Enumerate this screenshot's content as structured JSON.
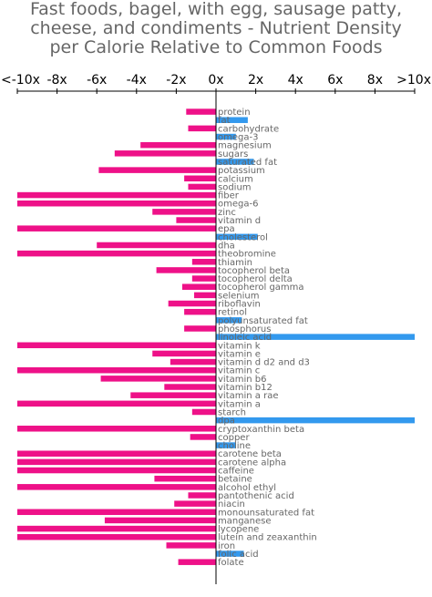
{
  "title_lines": [
    "Fast foods, bagel, with egg, sausage patty,",
    "cheese, and condiments - Nutrient Density",
    "per Calorie Relative to Common Foods"
  ],
  "colors": {
    "positive": "#3399ee",
    "negative": "#ee1188",
    "text": "#666666",
    "axis": "#000000"
  },
  "chart_data": {
    "type": "bar",
    "orientation": "horizontal",
    "x_ticks": [
      "<-10x",
      "-8x",
      "-6x",
      "-4x",
      "-2x",
      "0x",
      "2x",
      "4x",
      "6x",
      "8x",
      ">10x"
    ],
    "xlim": [
      -10,
      10
    ],
    "categories": [
      "protein",
      "fat",
      "carbohydrate",
      "omega-3",
      "magnesium",
      "sugars",
      "saturated fat",
      "potassium",
      "calcium",
      "sodium",
      "fiber",
      "omega-6",
      "zinc",
      "vitamin d",
      "epa",
      "cholesterol",
      "dha",
      "theobromine",
      "thiamin",
      "tocopherol beta",
      "tocopherol delta",
      "tocopherol gamma",
      "selenium",
      "riboflavin",
      "retinol",
      "polyunsaturated fat",
      "phosphorus",
      "linoleic acid",
      "vitamin k",
      "vitamin e",
      "vitamin d d2 and d3",
      "vitamin c",
      "vitamin b6",
      "vitamin b12",
      "vitamin a rae",
      "vitamin a",
      "starch",
      "dpa",
      "cryptoxanthin beta",
      "copper",
      "choline",
      "carotene beta",
      "carotene alpha",
      "caffeine",
      "betaine",
      "alcohol ethyl",
      "pantothenic acid",
      "niacin",
      "monounsaturated fat",
      "manganese",
      "lycopene",
      "lutein and zeaxanthin",
      "iron",
      "folic acid",
      "folate"
    ],
    "values": [
      -1.5,
      1.6,
      -1.4,
      1.0,
      -3.8,
      -5.1,
      1.9,
      -5.9,
      -1.6,
      -1.4,
      -10,
      -10,
      -3.2,
      -2.0,
      -10,
      2.1,
      -6.0,
      -10,
      -1.2,
      -3.0,
      -1.2,
      -1.7,
      -1.1,
      -2.4,
      -1.6,
      1.3,
      -1.6,
      10,
      -10,
      -3.2,
      -2.3,
      -10,
      -5.8,
      -2.6,
      -4.3,
      -10,
      -1.2,
      10,
      -10,
      -1.3,
      1.0,
      -10,
      -10,
      -10,
      -3.1,
      -10,
      -1.4,
      -2.1,
      -10,
      -5.6,
      -10,
      -10,
      -2.5,
      1.4,
      -1.9
    ]
  }
}
